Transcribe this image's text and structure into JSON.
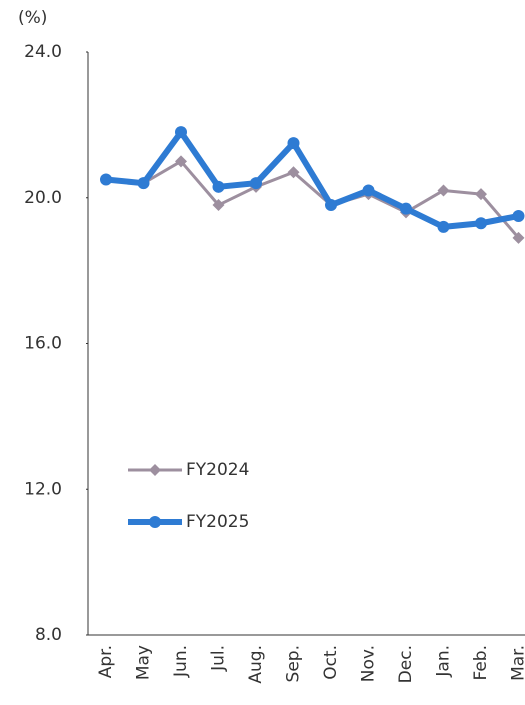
{
  "chart_data": {
    "type": "line",
    "unit_label": "(%)",
    "categories": [
      "Apr.",
      "May",
      "Jun.",
      "Jul.",
      "Aug.",
      "Sep.",
      "Oct.",
      "Nov.",
      "Dec.",
      "Jan.",
      "Feb.",
      "Mar."
    ],
    "series": [
      {
        "name": "FY2024",
        "color": "#9d8f9f",
        "values": [
          20.5,
          20.4,
          21.0,
          19.8,
          20.3,
          20.7,
          19.8,
          20.1,
          19.6,
          20.2,
          20.1,
          18.9
        ]
      },
      {
        "name": "FY2025",
        "color": "#2e7bd3",
        "values": [
          20.5,
          20.4,
          21.8,
          20.3,
          20.4,
          21.5,
          19.8,
          20.2,
          19.7,
          19.2,
          19.3,
          19.5
        ]
      }
    ],
    "ylim": [
      8.0,
      24.0
    ],
    "yticks": [
      {
        "value": 8,
        "label": "8.0"
      },
      {
        "value": 12,
        "label": "12.0"
      },
      {
        "value": 16,
        "label": "16.0"
      },
      {
        "value": 20,
        "label": "20.0"
      },
      {
        "value": 24,
        "label": "24.0"
      }
    ],
    "grid": false
  }
}
